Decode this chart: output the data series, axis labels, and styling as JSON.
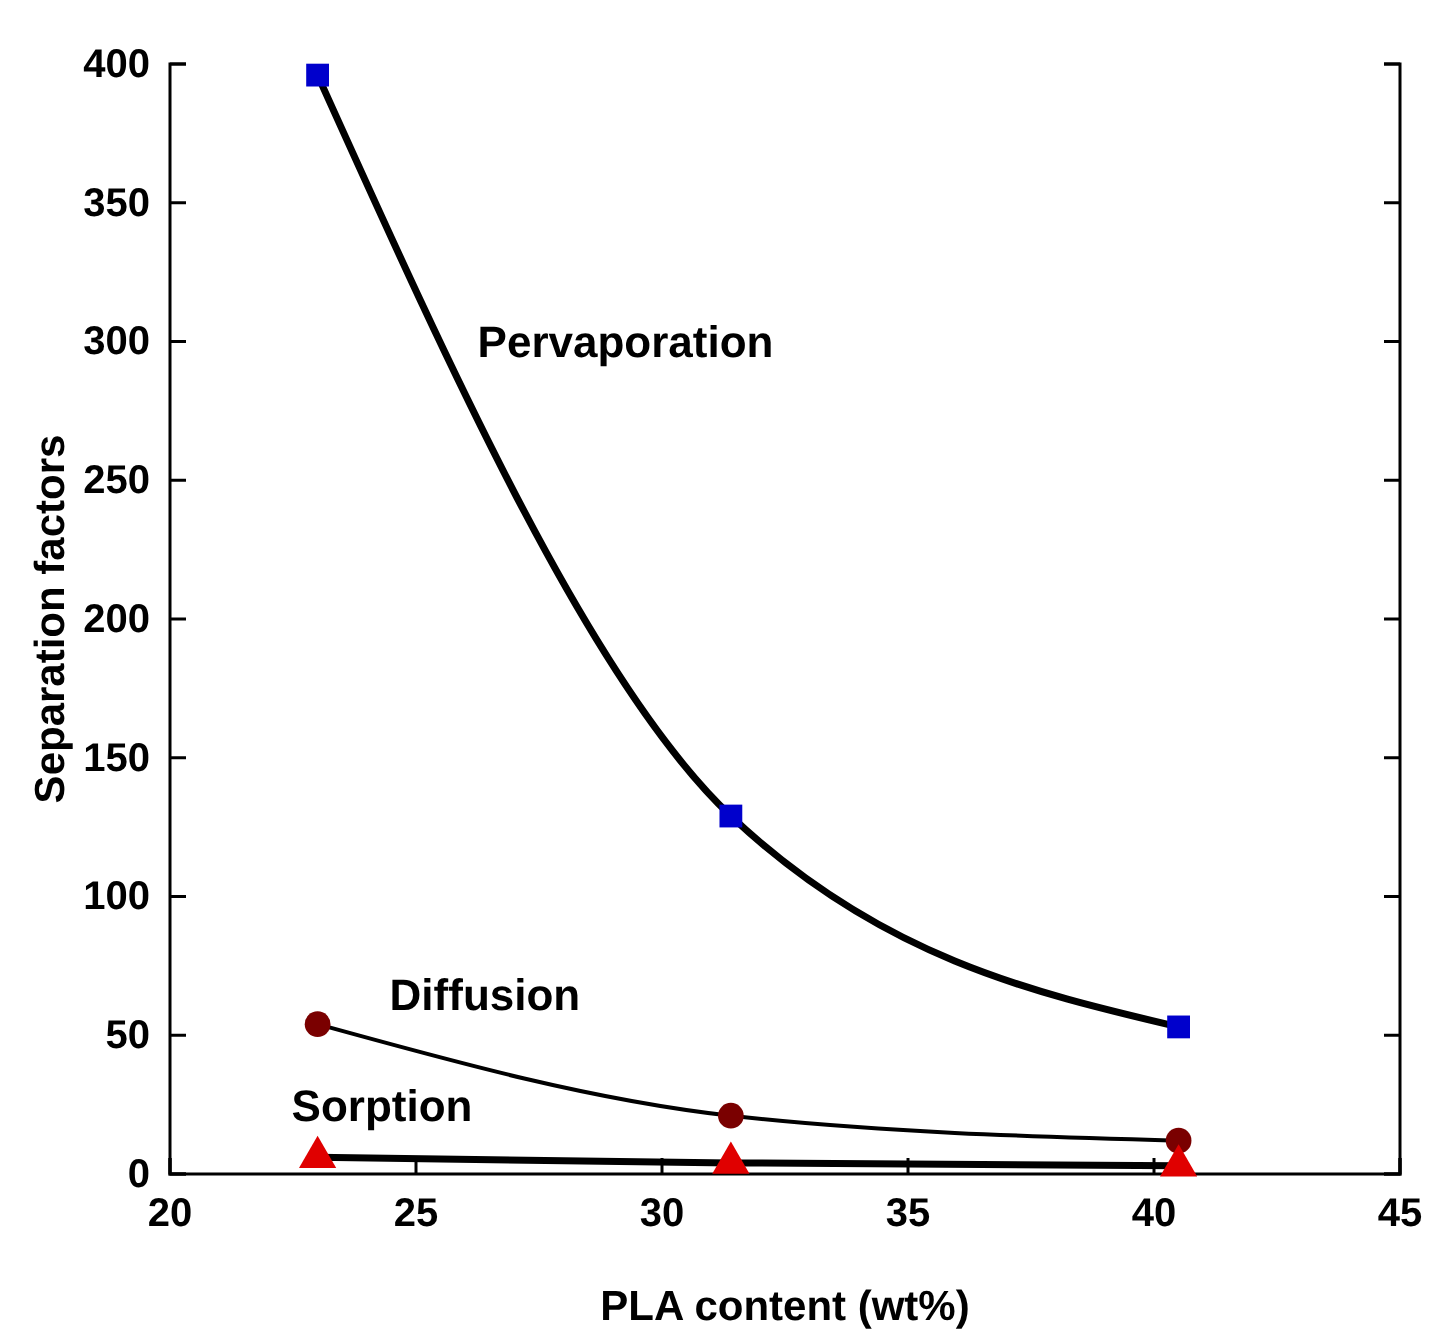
{
  "chart_data": {
    "type": "line",
    "xlabel": "PLA content (wt%)",
    "ylabel": "Separation factors",
    "x": [
      23,
      31.4,
      40.5
    ],
    "series": [
      {
        "name": "Pervaporation",
        "color": "#0000cc",
        "marker": "square",
        "values": [
          396,
          129,
          53
        ]
      },
      {
        "name": "Diffusion",
        "color": "#7a0000",
        "marker": "circle",
        "values": [
          54,
          21,
          12
        ]
      },
      {
        "name": "Sorption",
        "color": "#e00000",
        "marker": "triangle",
        "values": [
          6,
          4,
          3
        ]
      }
    ],
    "xlim": [
      20,
      45
    ],
    "xticks": [
      20,
      25,
      30,
      35,
      40,
      45
    ],
    "ylim": [
      0,
      400
    ],
    "yticks": [
      0,
      50,
      100,
      150,
      200,
      250,
      300,
      350,
      400
    ],
    "legend": false,
    "grid": false
  }
}
